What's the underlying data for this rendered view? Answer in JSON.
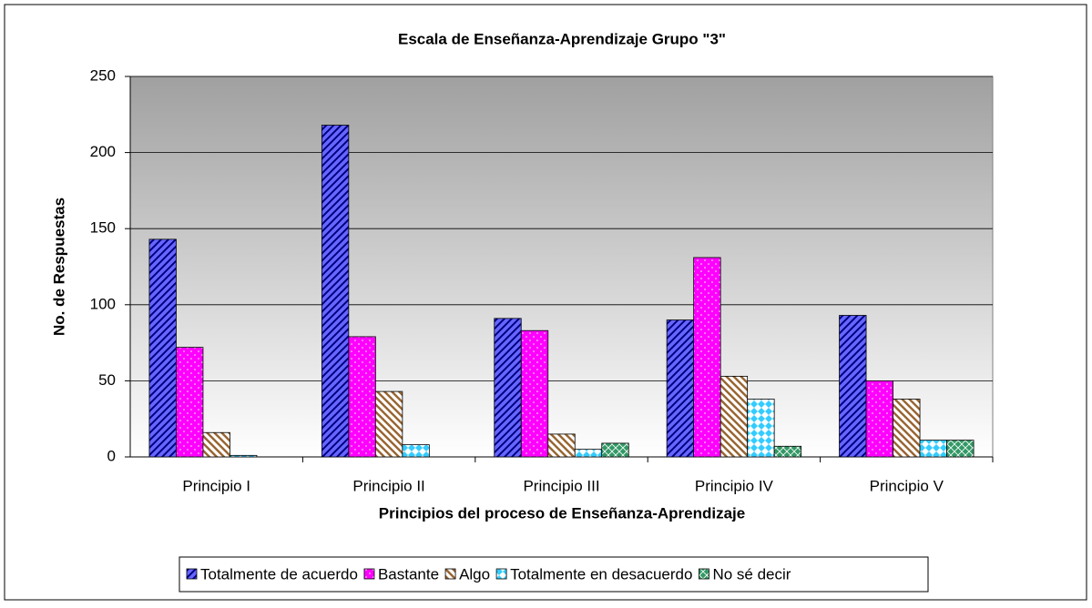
{
  "chart_data": {
    "type": "bar",
    "title": "Escala de Enseñanza-Aprendizaje Grupo \"3\"",
    "xlabel": "Principios del proceso de Enseñanza-Aprendizaje",
    "ylabel": "No. de Respuestas",
    "categories": [
      "Principio I",
      "Principio II",
      "Principio III",
      "Principio IV",
      "Principio V"
    ],
    "series": [
      {
        "name": "Totalmente de acuerdo",
        "color": "#6666ff",
        "values": [
          143,
          218,
          91,
          90,
          93
        ]
      },
      {
        "name": "Bastante",
        "color": "#ff00ff",
        "values": [
          72,
          79,
          83,
          131,
          50
        ]
      },
      {
        "name": "Algo",
        "color": "#996633",
        "values": [
          16,
          43,
          15,
          53,
          38
        ]
      },
      {
        "name": "Totalmente en desacuerdo",
        "color": "#33ccff",
        "values": [
          1,
          8,
          5,
          38,
          11
        ]
      },
      {
        "name": "No sé decir",
        "color": "#339966",
        "values": [
          0,
          0,
          9,
          7,
          11
        ]
      }
    ],
    "ylim": [
      0,
      250
    ],
    "yticks": [
      0,
      50,
      100,
      150,
      200,
      250
    ],
    "grid": true,
    "legend": "bottom"
  }
}
